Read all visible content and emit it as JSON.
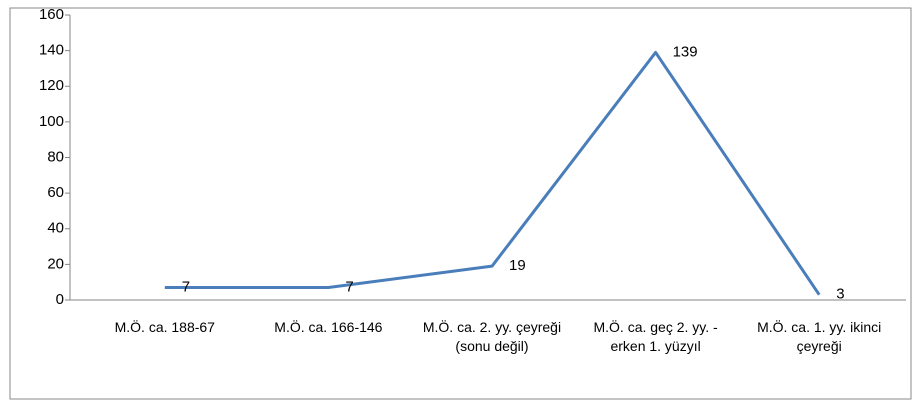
{
  "chart_data": {
    "type": "line",
    "categories": [
      "M.Ö. ca. 188-67",
      "M.Ö. ca. 166-146",
      "M.Ö. ca. 2. yy. çeyreği (sonu değil)",
      "M.Ö. ca. geç 2. yy. - erken 1. yüzyıl",
      "M.Ö. ca. 1. yy. ikinci çeyreği"
    ],
    "values": [
      7,
      7,
      19,
      139,
      3
    ],
    "color": "#4a7ebb",
    "ylim": [
      0,
      160
    ],
    "yticks": [
      0,
      20,
      40,
      60,
      80,
      100,
      120,
      140,
      160
    ],
    "grid": false
  }
}
